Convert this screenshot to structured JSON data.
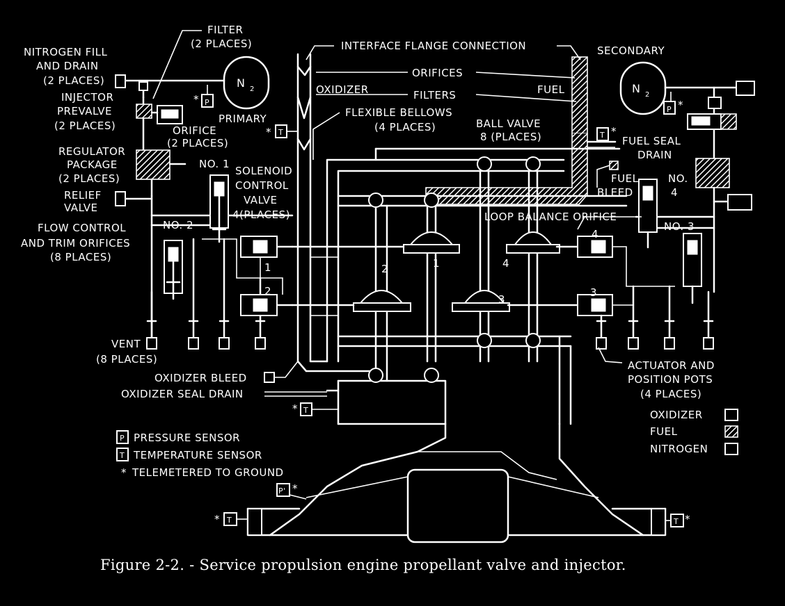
{
  "caption": "Figure 2-2. - Service propulsion engine propellant valve and injector.",
  "labels": {
    "filter_1": "FILTER",
    "filter_2": "(2 PLACES)",
    "nitrogen_fill_1": "NITROGEN FILL",
    "nitrogen_fill_2": "AND DRAIN",
    "nitrogen_fill_3": "(2 PLACES)",
    "injector_prevalve_1": "INJECTOR",
    "injector_prevalve_2": "PREVALVE",
    "injector_prevalve_3": "(2 PLACES)",
    "orifice_1": "ORIFICE",
    "orifice_2": "(2 PLACES)",
    "regulator_1": "REGULATOR",
    "regulator_2": "PACKAGE",
    "regulator_3": "(2 PLACES)",
    "relief_1": "RELIEF",
    "relief_2": "VALVE",
    "flow_control_1": "FLOW CONTROL",
    "flow_control_2": "AND TRIM ORIFICES",
    "flow_control_3": "(8 PLACES)",
    "vent_1": "VENT",
    "vent_2": "(8 PLACES)",
    "interface_flange": "INTERFACE FLANGE CONNECTION",
    "orifices": "ORIFICES",
    "oxidizer": "OXIDIZER",
    "fuel": "FUEL",
    "filters": "FILTERS",
    "flexible_bellows_1": "FLEXIBLE BELLOWS",
    "flexible_bellows_2": "(4 PLACES)",
    "primary": "PRIMARY",
    "secondary": "SECONDARY",
    "n2": "N",
    "n2_sub": "2",
    "ball_valve_1": "BALL VALVE",
    "ball_valve_2": "8 (PLACES)",
    "fuel_seal_drain_1": "FUEL SEAL",
    "fuel_seal_drain_2": "DRAIN",
    "fuel_bleed_1": "FUEL",
    "fuel_bleed_2": "BLEED",
    "no1": "NO. 1",
    "no2": "NO. 2",
    "no3": "NO. 3",
    "no4_1": "NO.",
    "no4_2": "4",
    "solenoid_1": "SOLENOID",
    "solenoid_2": "CONTROL",
    "solenoid_3": "VALVE",
    "solenoid_4": "4(PLACES)",
    "loop_balance": "LOOP BALANCE ORIFICE",
    "actuator_1": "ACTUATOR AND",
    "actuator_2": "POSITION POTS",
    "actuator_3": "(4 PLACES)",
    "oxidizer_bleed": "OXIDIZER BLEED",
    "oxidizer_seal_drain": "OXIDIZER SEAL DRAIN",
    "num_1": "1",
    "num_2": "2",
    "num_3": "3",
    "num_4": "4",
    "box_p": "P",
    "box_t": "T",
    "star": "*",
    "p_prime": "P'"
  },
  "legend": {
    "pressure_sensor": "PRESSURE SENSOR",
    "temperature_sensor": "TEMPERATURE SENSOR",
    "telemetered": "TELEMETERED TO GROUND",
    "oxidizer": "OXIDIZER",
    "fuel": "FUEL",
    "nitrogen": "NITROGEN"
  }
}
